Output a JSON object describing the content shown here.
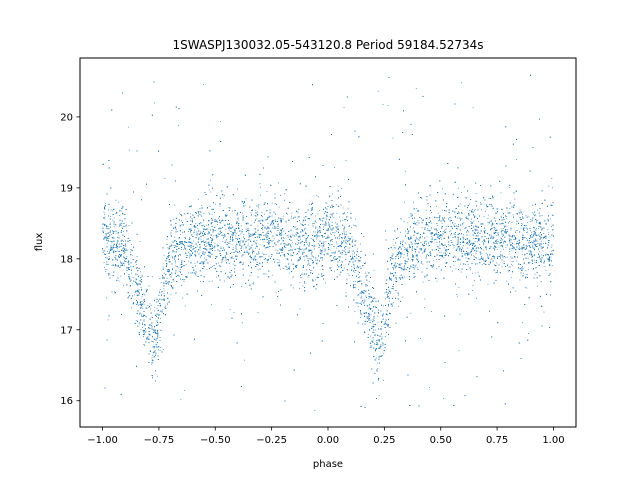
{
  "chart_data": {
    "type": "scatter",
    "title": "1SWASPJ130032.05-543120.8 Period 59184.52734s",
    "xlabel": "phase",
    "ylabel": "flux",
    "xlim": [
      -1.1,
      1.1
    ],
    "ylim": [
      15.63,
      20.83
    ],
    "xticks": [
      -1.0,
      -0.75,
      -0.5,
      -0.25,
      0.0,
      0.25,
      0.5,
      0.75,
      1.0
    ],
    "xtick_labels": [
      "−1.00",
      "−0.75",
      "−0.50",
      "−0.25",
      "0.00",
      "0.25",
      "0.50",
      "0.75",
      "1.00"
    ],
    "yticks": [
      16,
      17,
      18,
      19,
      20
    ],
    "ytick_labels": [
      "16",
      "17",
      "18",
      "19",
      "20"
    ],
    "grid": false,
    "series": [
      {
        "color": "#1f77b4",
        "x": [
          -1.0,
          -0.95,
          -0.9,
          -0.85,
          -0.8,
          -0.775,
          -0.75,
          -0.7,
          -0.65,
          -0.6,
          -0.55,
          -0.5,
          -0.45,
          -0.4,
          -0.35,
          -0.3,
          -0.25,
          -0.2,
          -0.15,
          -0.1,
          -0.05,
          0.0,
          0.05,
          0.1,
          0.15,
          0.2,
          0.225,
          0.25,
          0.3,
          0.35,
          0.4,
          0.45,
          0.5,
          0.55,
          0.6,
          0.65,
          0.7,
          0.75,
          0.8,
          0.85,
          0.9,
          0.95,
          1.0
        ],
        "y": [
          18.25,
          18.22,
          18.15,
          17.6,
          17.1,
          16.75,
          17.2,
          18.0,
          18.2,
          18.25,
          18.27,
          18.3,
          18.28,
          18.25,
          18.27,
          18.3,
          18.3,
          18.25,
          18.22,
          18.2,
          18.22,
          18.25,
          18.22,
          18.15,
          17.6,
          17.1,
          16.75,
          17.2,
          18.0,
          18.2,
          18.25,
          18.27,
          18.3,
          18.28,
          18.25,
          18.27,
          18.3,
          18.3,
          18.25,
          18.22,
          18.2,
          18.22,
          18.25
        ]
      }
    ]
  }
}
